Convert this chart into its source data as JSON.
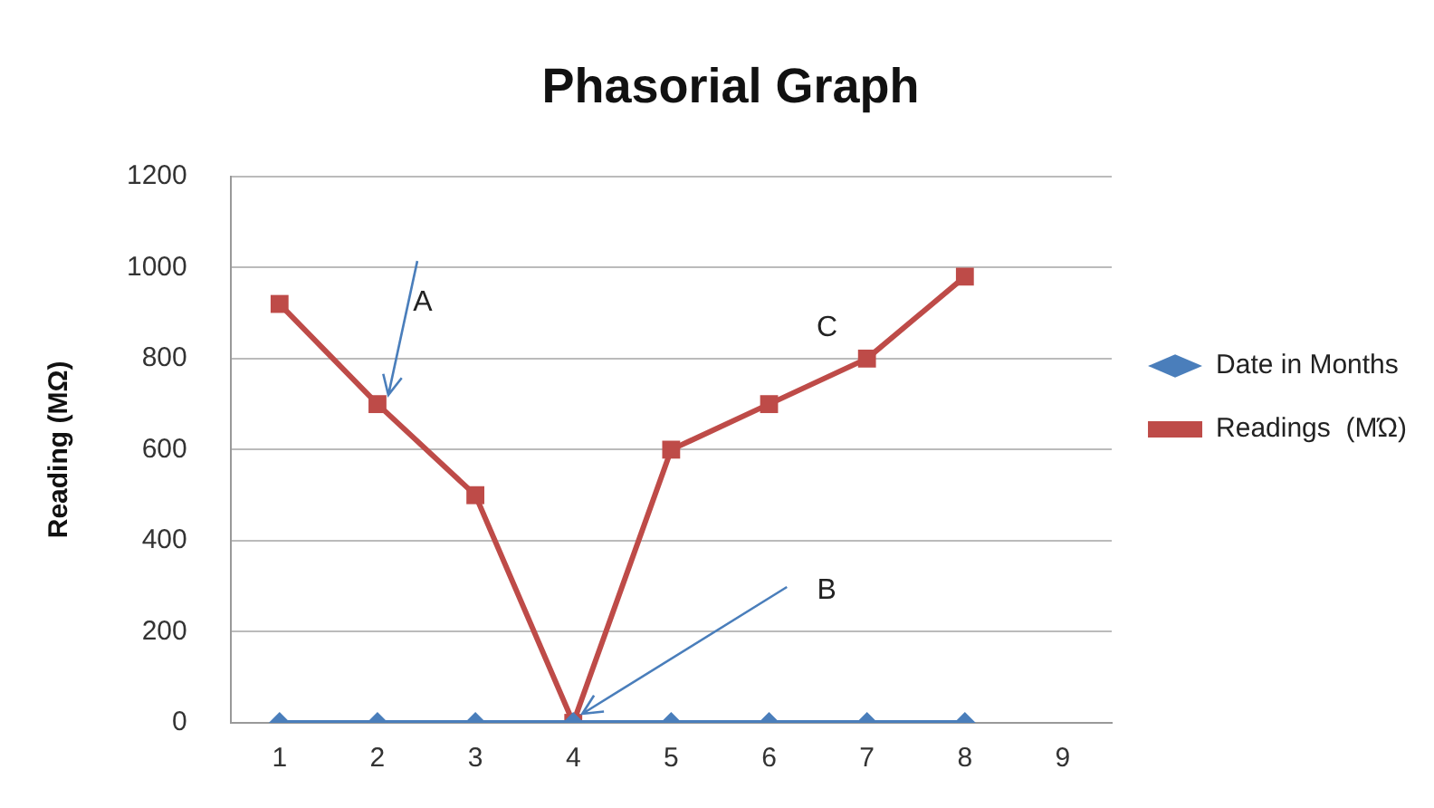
{
  "chart_data": {
    "type": "line",
    "title": "Phasorial Graph",
    "ylabel": "Reading (MΩ)",
    "categories": [
      "1",
      "2",
      "3",
      "4",
      "5",
      "6",
      "7",
      "8",
      "9"
    ],
    "series": [
      {
        "name": "Date in Months",
        "color": "#4a7ebb",
        "marker": "diamond",
        "values": [
          0,
          0,
          0,
          0,
          0,
          0,
          0,
          0,
          null
        ]
      },
      {
        "name": "Readings  (MΏ)",
        "color": "#be4b48",
        "marker": "square",
        "values": [
          920,
          700,
          500,
          0,
          600,
          700,
          800,
          980,
          null
        ]
      }
    ],
    "ylim": [
      0,
      1200
    ],
    "yticks": [
      0,
      200,
      400,
      600,
      800,
      1000,
      1200
    ],
    "grid": "y",
    "legend": "right",
    "line_style": "solid",
    "annotations": [
      {
        "text": "A",
        "x": "2",
        "y": 700
      },
      {
        "text": "B",
        "x": "4",
        "y": 0
      },
      {
        "text": "C",
        "x": "7",
        "y": 800
      }
    ]
  }
}
